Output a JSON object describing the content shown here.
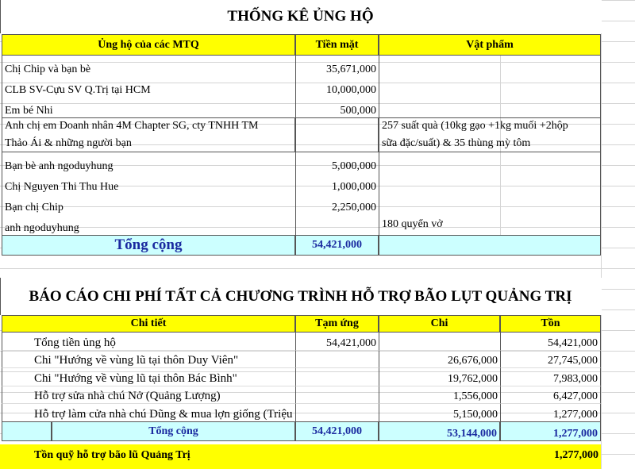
{
  "table1": {
    "title": "THỐNG KÊ ỦNG HỘ",
    "headers": [
      "Ủng hộ của các MTQ",
      "Tiền mặt",
      "Vật phẩm"
    ],
    "rows": [
      {
        "name": "Chị Chip và bạn bè",
        "cash": "35,671,000",
        "items": ""
      },
      {
        "name": "CLB SV-Cựu SV Q.Trị tại HCM",
        "cash": "10,000,000",
        "items": ""
      },
      {
        "name": "Em bé Nhi",
        "cash": "500,000",
        "items": ""
      },
      {
        "name": "Anh chị em Doanh nhân 4M Chapter SG, cty TNHH TM",
        "name2": "Thảo Ái & những người bạn",
        "cash": "",
        "items": "257 suất quà (10kg gạo +1kg muối +2hộp",
        "items2": "sữa đặc/suất) & 35 thùng mỳ tôm"
      },
      {
        "name": "Bạn bè anh ngoduyhung",
        "cash": "5,000,000",
        "items": ""
      },
      {
        "name": "Chị Nguyen Thi Thu Hue",
        "cash": "1,000,000",
        "items": ""
      },
      {
        "name": "Bạn chị Chip",
        "cash": "2,250,000",
        "items": ""
      },
      {
        "name": "anh ngoduyhung",
        "cash": "",
        "items": "180 quyển vở"
      }
    ],
    "total_label": "Tổng cộng",
    "total_cash": "54,421,000"
  },
  "table2": {
    "title": "BÁO CÁO CHI PHÍ TẤT CẢ CHƯƠNG TRÌNH HỖ TRỢ BÃO LỤT QUẢNG TRỊ",
    "headers": [
      "Chi tiết",
      "Tạm ứng",
      "Chi",
      "Tồn"
    ],
    "rows": [
      {
        "detail": "Tổng tiền ủng hộ",
        "advance": "54,421,000",
        "spent": "",
        "balance": "54,421,000"
      },
      {
        "detail": "Chi \"Hướng về vùng lũ tại thôn Duy Viên\"",
        "advance": "",
        "spent": "26,676,000",
        "balance": "27,745,000"
      },
      {
        "detail": "Chi \"Hướng về vùng lũ tại thôn Bác Bình\"",
        "advance": "",
        "spent": "19,762,000",
        "balance": "7,983,000"
      },
      {
        "detail": "Hỗ trợ sửa nhà chú Nở (Quảng Lượng)",
        "advance": "",
        "spent": "1,556,000",
        "balance": "6,427,000"
      },
      {
        "detail": "Hỗ trợ làm cửa nhà chú Dũng & mua lợn giống (Triệu Ái)",
        "advance": "",
        "spent": "5,150,000",
        "balance": "1,277,000"
      }
    ],
    "total_label": "Tổng cộng",
    "total_advance": "54,421,000",
    "total_spent": "53,144,000",
    "total_balance": "1,277,000",
    "fund_label": "Tồn quỹ hỗ trợ bão lũ Quảng Trị",
    "fund_value": "1,277,000"
  },
  "colors": {
    "header": "#ffff00",
    "total": "#ccffff",
    "total_text": "#1a2aa0"
  }
}
